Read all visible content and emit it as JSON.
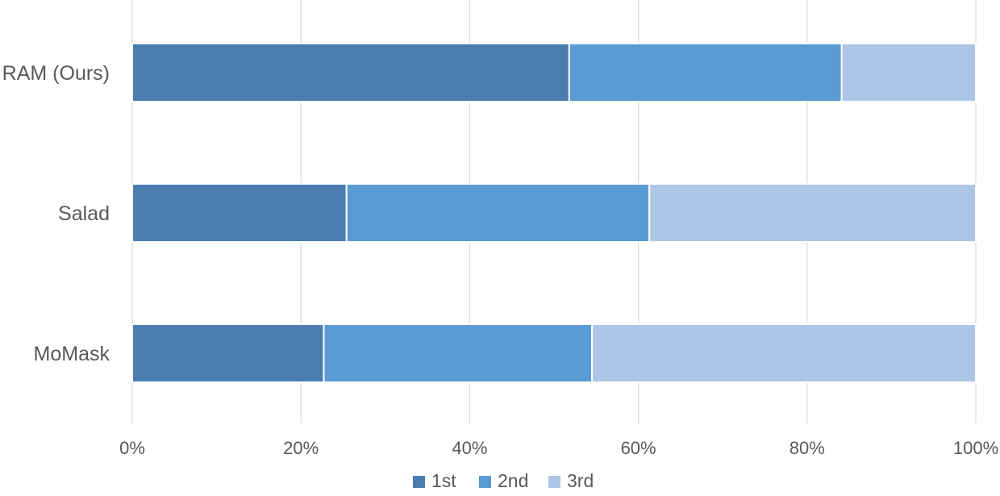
{
  "chart_data": {
    "type": "bar",
    "orientation": "horizontal",
    "stacked": true,
    "percent_stacked": true,
    "categories": [
      "RAM (Ours)",
      "Salad",
      "MoMask"
    ],
    "series": [
      {
        "name": "1st",
        "color": "#4A7EB0",
        "values": [
          51.8,
          25.4,
          22.7
        ]
      },
      {
        "name": "2nd",
        "color": "#5B9BD5",
        "values": [
          32.3,
          35.9,
          31.8
        ]
      },
      {
        "name": "3rd",
        "color": "#ADC6E6",
        "values": [
          15.9,
          38.7,
          45.5
        ]
      }
    ],
    "x_ticks": [
      0,
      20,
      40,
      60,
      80,
      100
    ],
    "x_tick_labels": [
      "0%",
      "20%",
      "40%",
      "60%",
      "80%",
      "100%"
    ],
    "xlim": [
      0,
      100
    ],
    "grid": "vertical",
    "legend": "bottom-center"
  }
}
